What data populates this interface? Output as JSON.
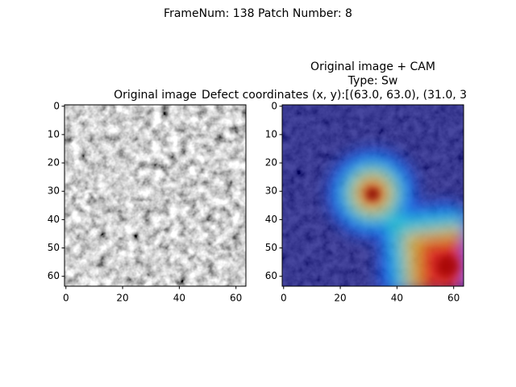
{
  "suptitle": "FrameNum: 138   Patch Number: 8",
  "chart_data": [
    {
      "type": "image",
      "title": [
        "Original image"
      ],
      "xlim": [
        -0.5,
        63.5
      ],
      "ylim": [
        63.5,
        -0.5
      ],
      "xticks": [
        0,
        20,
        40,
        60
      ],
      "yticks": [
        0,
        10,
        20,
        30,
        40,
        50,
        60
      ]
    },
    {
      "type": "image",
      "title": [
        "Original image + CAM",
        "Type: Sw",
        "Defect coordinates (x, y):[(63.0, 63.0), (31.0, 3"
      ],
      "xlim": [
        -0.5,
        63.5
      ],
      "ylim": [
        63.5,
        -0.5
      ],
      "xticks": [
        0,
        20,
        40,
        60
      ],
      "yticks": [
        0,
        10,
        20,
        30,
        40,
        50,
        60
      ]
    }
  ]
}
